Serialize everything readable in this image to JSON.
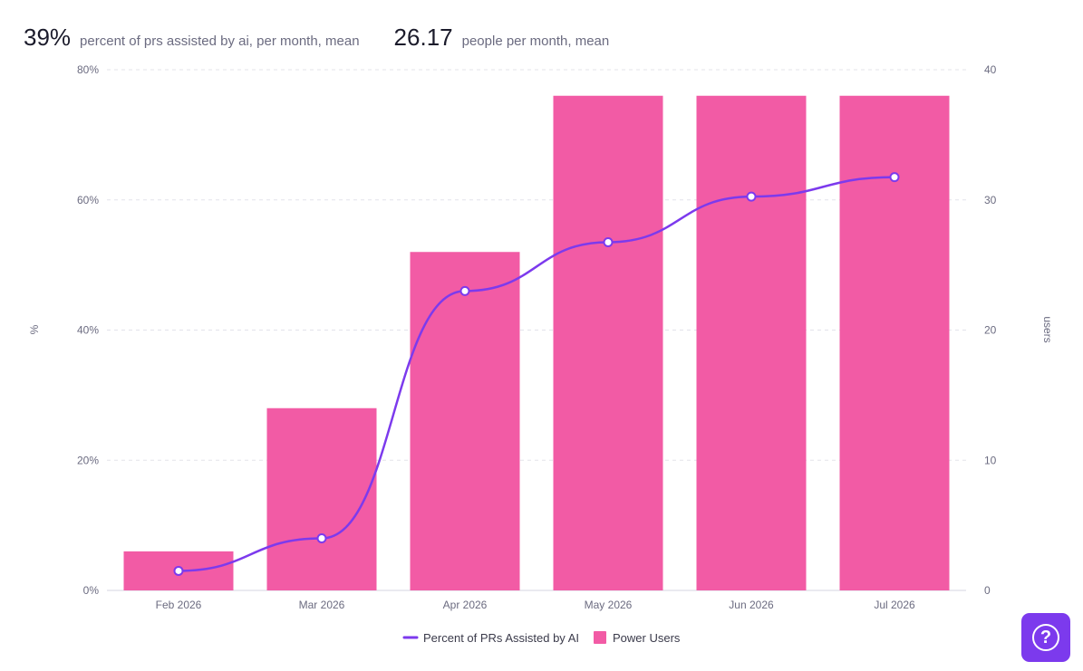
{
  "summary": {
    "metric1": {
      "value": "39%",
      "label": "percent of prs assisted by ai, per month, mean"
    },
    "metric2": {
      "value": "26.17",
      "label": "people per month, mean"
    }
  },
  "chart_data": {
    "type": "bar",
    "categories": [
      "Feb 2026",
      "Mar 2026",
      "Apr 2026",
      "May 2026",
      "Jun 2026",
      "Jul 2026"
    ],
    "y_left": {
      "label": "%",
      "ticks": [
        "0%",
        "20%",
        "40%",
        "60%",
        "80%"
      ],
      "range": [
        0,
        80
      ]
    },
    "y_right": {
      "label": "users",
      "ticks": [
        "0",
        "10",
        "20",
        "30",
        "40"
      ],
      "range": [
        0,
        40
      ]
    },
    "series": [
      {
        "name": "Percent of PRs Assisted by AI",
        "type": "line",
        "axis": "left",
        "color": "#7c3aed",
        "values": [
          3,
          8,
          46,
          53.5,
          60.5,
          63.5
        ]
      },
      {
        "name": "Power Users",
        "type": "bar",
        "axis": "right",
        "color": "#f25ba5",
        "values": [
          3,
          14,
          26,
          38,
          38,
          38
        ]
      }
    ],
    "grid": true,
    "legend": "bottom-center"
  },
  "help": {
    "label": "?"
  }
}
